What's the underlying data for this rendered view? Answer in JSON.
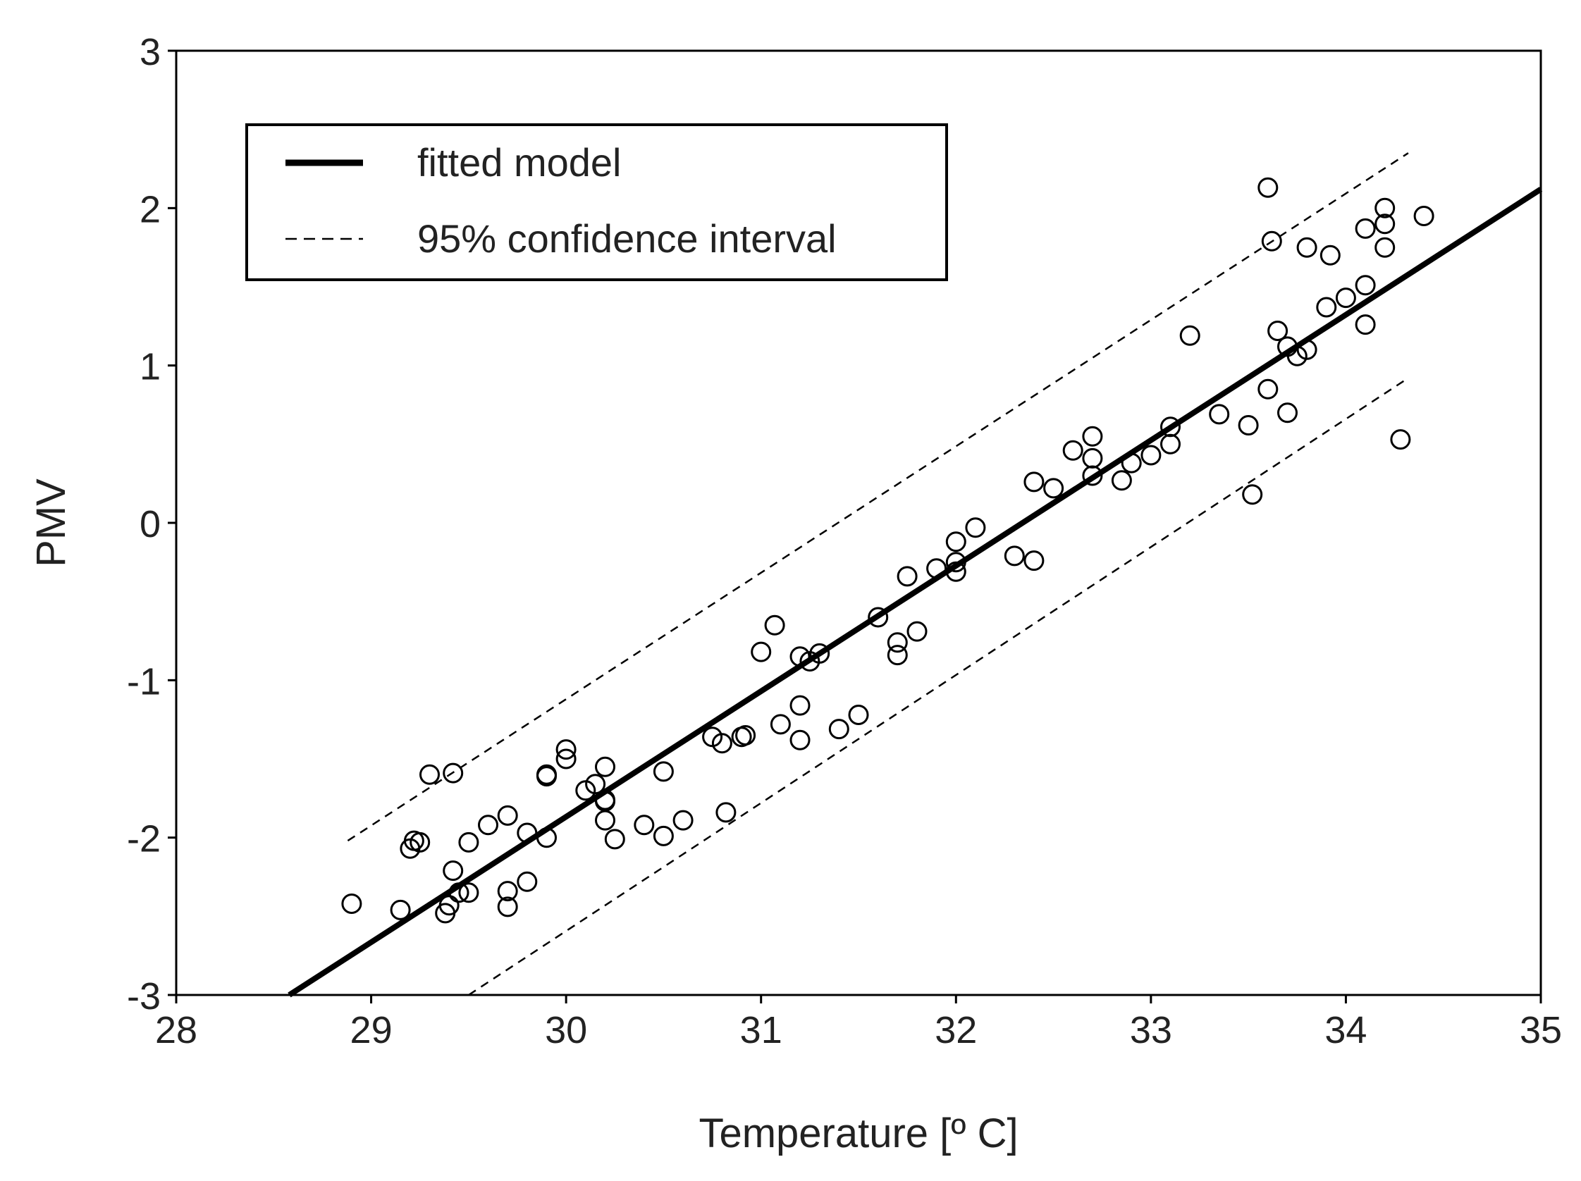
{
  "chart_data": {
    "type": "scatter",
    "title": "",
    "xlabel": "Temperature [º C]",
    "ylabel": "PMV",
    "xlim": [
      28,
      35
    ],
    "ylim": [
      -3,
      3
    ],
    "x_ticks": [
      "28",
      "29",
      "30",
      "31",
      "32",
      "33",
      "34",
      "35"
    ],
    "y_ticks": [
      "3",
      "2",
      "1",
      "0",
      "-1",
      "-2",
      "-3"
    ],
    "grid": false,
    "legend": {
      "position": "top-left",
      "entries": [
        {
          "label": "fitted model",
          "style": "solid"
        },
        {
          "label": "95% confidence interval",
          "style": "dashed"
        }
      ]
    },
    "fitted_model": {
      "x": [
        28.58,
        35.0
      ],
      "y": [
        -3.0,
        2.12
      ]
    },
    "ci_upper": {
      "x": [
        28.88,
        34.32
      ],
      "y": [
        -2.02,
        2.35
      ]
    },
    "ci_lower": {
      "x": [
        29.5,
        34.32
      ],
      "y": [
        -3.0,
        0.92
      ]
    },
    "series": [
      {
        "name": "observations",
        "marker": "open-circle",
        "x": [
          28.9,
          29.15,
          29.2,
          29.22,
          29.25,
          29.3,
          29.38,
          29.4,
          29.42,
          29.42,
          29.45,
          29.5,
          29.5,
          29.6,
          29.7,
          29.7,
          29.7,
          29.8,
          29.8,
          29.9,
          29.9,
          29.9,
          30.0,
          30.0,
          30.1,
          30.15,
          30.2,
          30.2,
          30.2,
          30.2,
          30.25,
          30.4,
          30.5,
          30.5,
          30.6,
          30.75,
          30.8,
          30.82,
          30.9,
          30.92,
          31.0,
          31.07,
          31.1,
          31.2,
          31.2,
          31.2,
          31.25,
          31.3,
          31.4,
          31.5,
          31.6,
          31.7,
          31.7,
          31.75,
          31.8,
          31.9,
          32.0,
          32.0,
          32.0,
          32.1,
          32.3,
          32.4,
          32.4,
          32.5,
          32.6,
          32.7,
          32.7,
          32.7,
          32.85,
          32.9,
          33.0,
          33.1,
          33.1,
          33.2,
          33.35,
          33.5,
          33.52,
          33.6,
          33.6,
          33.62,
          33.65,
          33.7,
          33.7,
          33.75,
          33.8,
          33.8,
          33.92,
          33.9,
          34.0,
          34.1,
          34.1,
          34.1,
          34.2,
          34.2,
          34.2,
          34.28,
          34.4
        ],
        "y": [
          -2.42,
          -2.46,
          -2.07,
          -2.02,
          -2.03,
          -1.6,
          -2.48,
          -2.43,
          -2.21,
          -1.59,
          -2.35,
          -2.03,
          -2.35,
          -1.92,
          -2.34,
          -2.44,
          -1.86,
          -2.28,
          -1.97,
          -2.0,
          -1.6,
          -1.61,
          -1.44,
          -1.5,
          -1.7,
          -1.66,
          -1.89,
          -1.77,
          -1.55,
          -1.76,
          -2.01,
          -1.92,
          -1.58,
          -1.99,
          -1.89,
          -1.36,
          -1.4,
          -1.84,
          -1.36,
          -1.35,
          -0.82,
          -0.65,
          -1.28,
          -0.85,
          -1.16,
          -1.38,
          -0.88,
          -0.83,
          -1.31,
          -1.22,
          -0.6,
          -0.76,
          -0.84,
          -0.34,
          -0.69,
          -0.29,
          -0.12,
          -0.25,
          -0.31,
          -0.03,
          -0.21,
          -0.24,
          0.26,
          0.22,
          0.46,
          0.3,
          0.41,
          0.55,
          0.27,
          0.38,
          0.43,
          0.61,
          0.5,
          1.19,
          0.69,
          0.62,
          0.18,
          2.13,
          0.85,
          1.79,
          1.22,
          1.12,
          0.7,
          1.06,
          1.1,
          1.75,
          1.7,
          1.37,
          1.43,
          1.51,
          1.87,
          1.26,
          1.9,
          2.0,
          1.75,
          0.53,
          1.95
        ]
      }
    ]
  }
}
